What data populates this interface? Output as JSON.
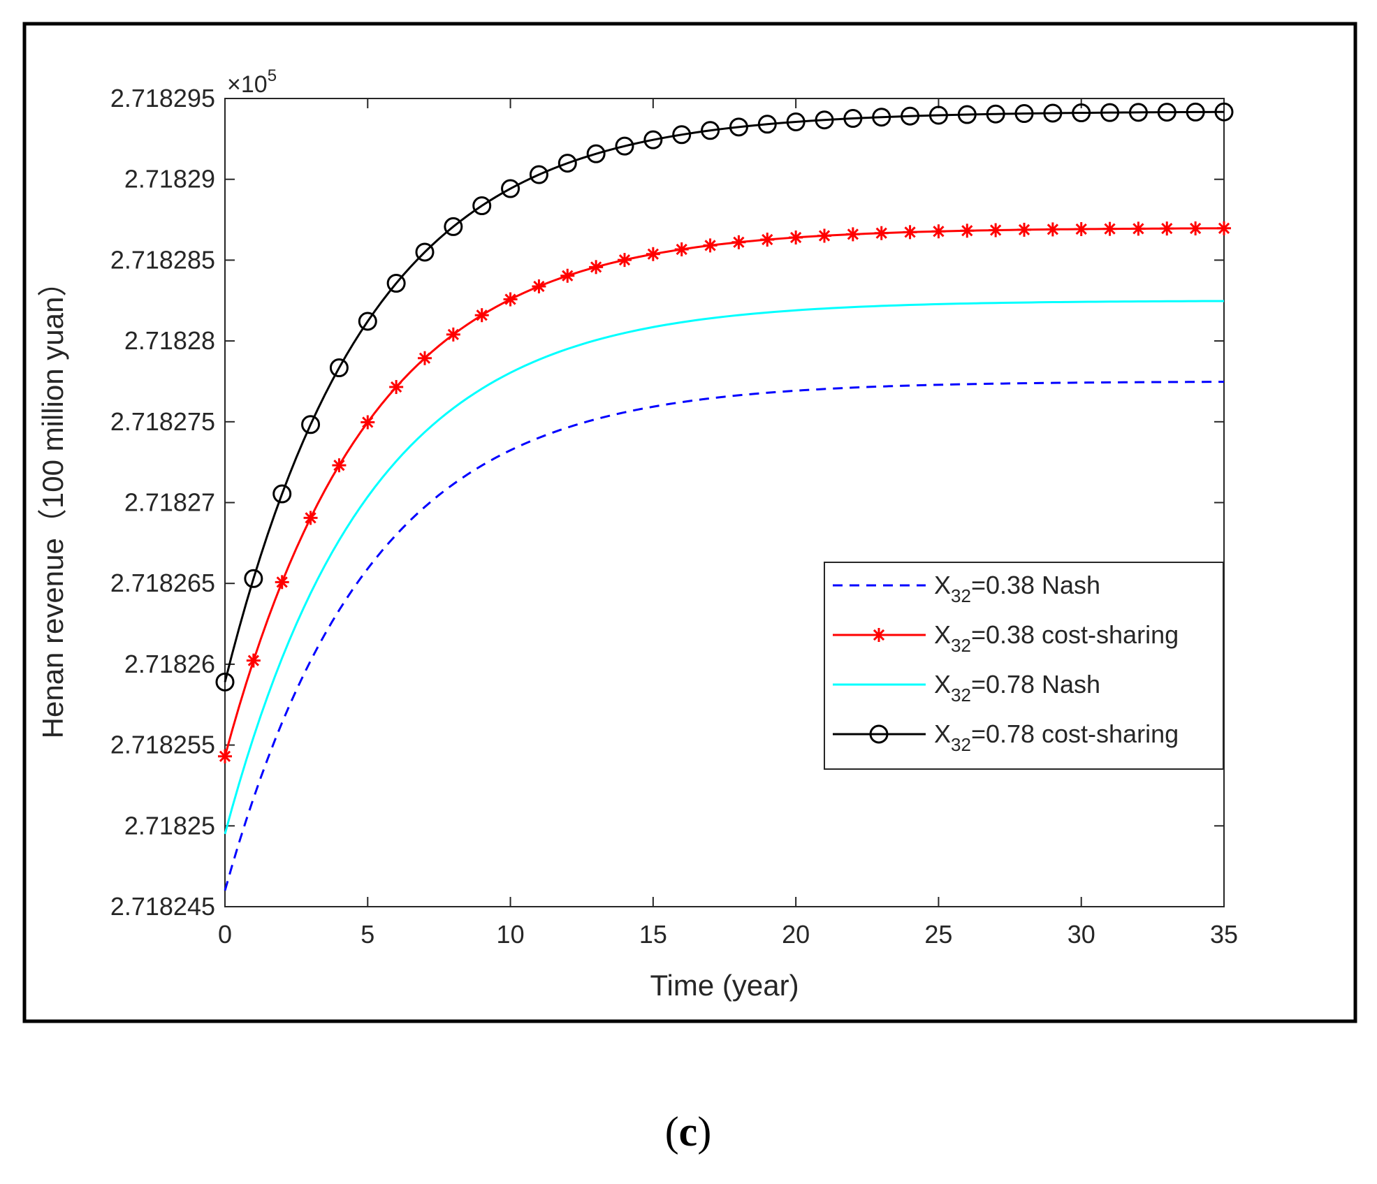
{
  "chart_data": {
    "type": "line",
    "xlabel": "Time (year)",
    "ylabel": "Henan revenue（100 million yuan）",
    "xlim": [
      0,
      35
    ],
    "ylim": [
      2.718245,
      2.718295
    ],
    "x_ticks": [
      0,
      5,
      10,
      15,
      20,
      25,
      30,
      35
    ],
    "y_ticks": [
      2.718245,
      2.71825,
      2.718255,
      2.71826,
      2.718265,
      2.71827,
      2.718275,
      2.71828,
      2.718285,
      2.71829,
      2.718295
    ],
    "y_tick_labels": [
      "2.718245",
      "2.71825",
      "2.718255",
      "2.71826",
      "2.718265",
      "2.71827",
      "2.718275",
      "2.71828",
      "2.718285",
      "2.71829",
      "2.718295"
    ],
    "y_exponent": {
      "base": "×10",
      "power": "5"
    },
    "legend_position": "center-right",
    "series": [
      {
        "name": "X32=0.38 Nash",
        "label_var": "X",
        "label_sub": "32",
        "label_rest": "=0.38 Nash",
        "color": "#0000ff",
        "style": "dashed",
        "marker": "none",
        "start": 2.718246,
        "end": 2.7182775,
        "rate": 0.2
      },
      {
        "name": "X32=0.38 cost-sharing",
        "label_var": "X",
        "label_sub": "32",
        "label_rest": "=0.38 cost-sharing",
        "color": "#ff0000",
        "style": "solid",
        "marker": "asterisk",
        "start": 2.7182543,
        "end": 2.718287,
        "rate": 0.2
      },
      {
        "name": "X32=0.78 Nash",
        "label_var": "X",
        "label_sub": "32",
        "label_rest": "=0.78 Nash",
        "color": "#00ffff",
        "style": "solid",
        "marker": "none",
        "start": 2.7182495,
        "end": 2.7182825,
        "rate": 0.2
      },
      {
        "name": "X32=0.78 cost-sharing",
        "label_var": "X",
        "label_sub": "32",
        "label_rest": "=0.78 cost-sharing",
        "color": "#000000",
        "style": "solid",
        "marker": "circle",
        "start": 2.7182589,
        "end": 2.7182942,
        "rate": 0.2
      }
    ]
  },
  "caption": "(c)"
}
